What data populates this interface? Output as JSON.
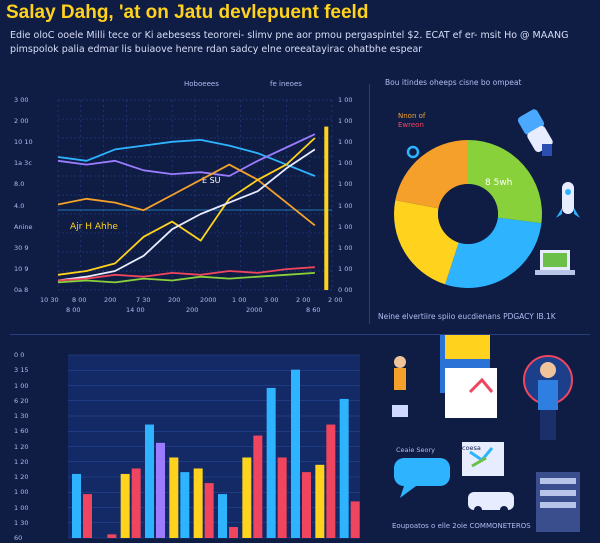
{
  "title": "Salay Dahg, 'at on Jatu devlepuent feeld",
  "intro": [
    "Edie oloC ooele Milli tece or Ki aebesess teororei- slimv pne aor pmou pergaspintel $2. ECAT ef er- msit Ho @ MAANG",
    "pimspolok palia edmar lis buiaove henre rdan sadcy elne oreeatayirac ohatbhe espear"
  ],
  "colors": {
    "background": "#0f1d45",
    "title": "#ffd21e",
    "grid": "#2a4a9a",
    "blue": "#2eb4ff",
    "yellow": "#ffd21e",
    "red": "#f0455e",
    "green": "#89d13a",
    "orange": "#f4a02a",
    "purple": "#9b7cff",
    "white": "#e8ecff"
  },
  "chart_data": [
    {
      "type": "line",
      "legend": {
        "left": "Hoboeees",
        "right": "fe ineoes"
      },
      "y_labels_left": [
        "3 00",
        "2 00",
        "10 10",
        "1a 3c",
        "8.0",
        "4.0",
        "Anine",
        "30 9",
        "10 9",
        "0a 8"
      ],
      "y_labels_right": [
        "1 00",
        "1 00",
        "1 00",
        "1 00",
        "1 00",
        "1 00",
        "1 00",
        "1 00",
        "1 00",
        "0 00"
      ],
      "x_labels": [
        "10 30",
        "8 00",
        "200",
        "7 30",
        "200",
        "2000",
        "1 00",
        "3 00",
        "2 00",
        "2 00"
      ],
      "x_sub_labels": [
        "8 00",
        "14 00",
        "200",
        "2000",
        "8 60"
      ],
      "annotations": [
        "Ajr H Ahhe",
        "E SU"
      ],
      "ylim": [
        0,
        10
      ],
      "series": [
        {
          "color": "#2eb4ff",
          "x": [
            0,
            1,
            2,
            3,
            4,
            5,
            6,
            7,
            8,
            9
          ],
          "y": [
            7.0,
            6.8,
            7.4,
            7.6,
            7.8,
            7.9,
            7.6,
            7.2,
            6.6,
            6.0
          ]
        },
        {
          "color": "#9b7cff",
          "x": [
            0,
            1,
            2,
            3,
            4,
            5,
            6,
            7,
            8,
            9
          ],
          "y": [
            6.8,
            6.6,
            6.8,
            6.3,
            6.1,
            6.2,
            6.0,
            6.8,
            7.5,
            8.2
          ]
        },
        {
          "color": "#f4a02a",
          "x": [
            0,
            1,
            2,
            3,
            4,
            5,
            6,
            7,
            8,
            9
          ],
          "y": [
            4.5,
            4.8,
            4.6,
            4.2,
            5.0,
            5.8,
            6.6,
            5.8,
            4.6,
            3.4
          ]
        },
        {
          "color": "#ffd21e",
          "x": [
            0,
            1,
            2,
            3,
            4,
            5,
            6,
            7,
            8,
            9
          ],
          "y": [
            0.8,
            1.0,
            1.4,
            2.8,
            3.6,
            2.6,
            4.8,
            5.8,
            6.6,
            8.0
          ]
        },
        {
          "color": "#e8ecff",
          "x": [
            0,
            1,
            2,
            3,
            4,
            5,
            6,
            7,
            8,
            9
          ],
          "y": [
            0.5,
            0.7,
            1.0,
            1.8,
            3.2,
            4.0,
            4.6,
            5.2,
            6.4,
            7.4
          ]
        },
        {
          "color": "#f0455e",
          "x": [
            0,
            1,
            2,
            3,
            4,
            5,
            6,
            7,
            8,
            9
          ],
          "y": [
            0.5,
            0.6,
            0.8,
            0.7,
            0.9,
            0.8,
            1.0,
            0.9,
            1.1,
            1.2
          ]
        },
        {
          "color": "#89d13a",
          "x": [
            0,
            1,
            2,
            3,
            4,
            5,
            6,
            7,
            8,
            9
          ],
          "y": [
            0.4,
            0.5,
            0.4,
            0.6,
            0.5,
            0.7,
            0.6,
            0.7,
            0.8,
            0.9
          ]
        }
      ],
      "highlight_bar": {
        "x": 9.4,
        "y": 8.6,
        "color": "#ffd21e"
      }
    },
    {
      "type": "pie",
      "title": "Bou itindes oheeps cisne bo ompeat",
      "legend": [
        "Nnon of",
        "Ewreon"
      ],
      "center_label": "8 5wh",
      "caption": "Neine elvertiire spiio eucdienans PDGACY IB.1K",
      "values": [
        27,
        28,
        23,
        22
      ],
      "colors": [
        "#89d13a",
        "#2eb4ff",
        "#ffd21e",
        "#f4a02a"
      ]
    },
    {
      "type": "bar",
      "y_labels": [
        "0 0",
        "3 15",
        "1 00",
        "6 20",
        "1 30",
        "1 60",
        "1 20",
        "1 20",
        "1 20",
        "1 00",
        "1 00",
        "1 30",
        "60"
      ],
      "ylim": [
        0,
        10
      ],
      "groups": [
        {
          "x": 0,
          "blue": 3.5,
          "red": 2.4
        },
        {
          "x": 1,
          "blue": 0,
          "red": 0.2
        },
        {
          "x": 2,
          "yellow": 3.5,
          "red": 3.8
        },
        {
          "x": 3,
          "blue": 6.2,
          "purple": 5.2
        },
        {
          "x": 4,
          "yellow": 4.4,
          "blue": 3.6
        },
        {
          "x": 5,
          "yellow": 3.8,
          "red": 3.0
        },
        {
          "x": 6,
          "blue": 2.4,
          "red": 0.6
        },
        {
          "x": 7,
          "yellow": 4.4,
          "red": 5.6
        },
        {
          "x": 8,
          "blue": 8.2,
          "red": 4.4
        },
        {
          "x": 9,
          "blue": 9.2,
          "red": 3.6
        },
        {
          "x": 10,
          "yellow": 4.0,
          "red": 6.2
        },
        {
          "x": 11,
          "blue": 7.6,
          "red": 2.0
        }
      ]
    }
  ],
  "illustrations": {
    "card_labels": [
      "Ceaie Seory",
      "coesa"
    ],
    "footer": "Eoupoatos o elle 2oie COMMONETEROS"
  }
}
